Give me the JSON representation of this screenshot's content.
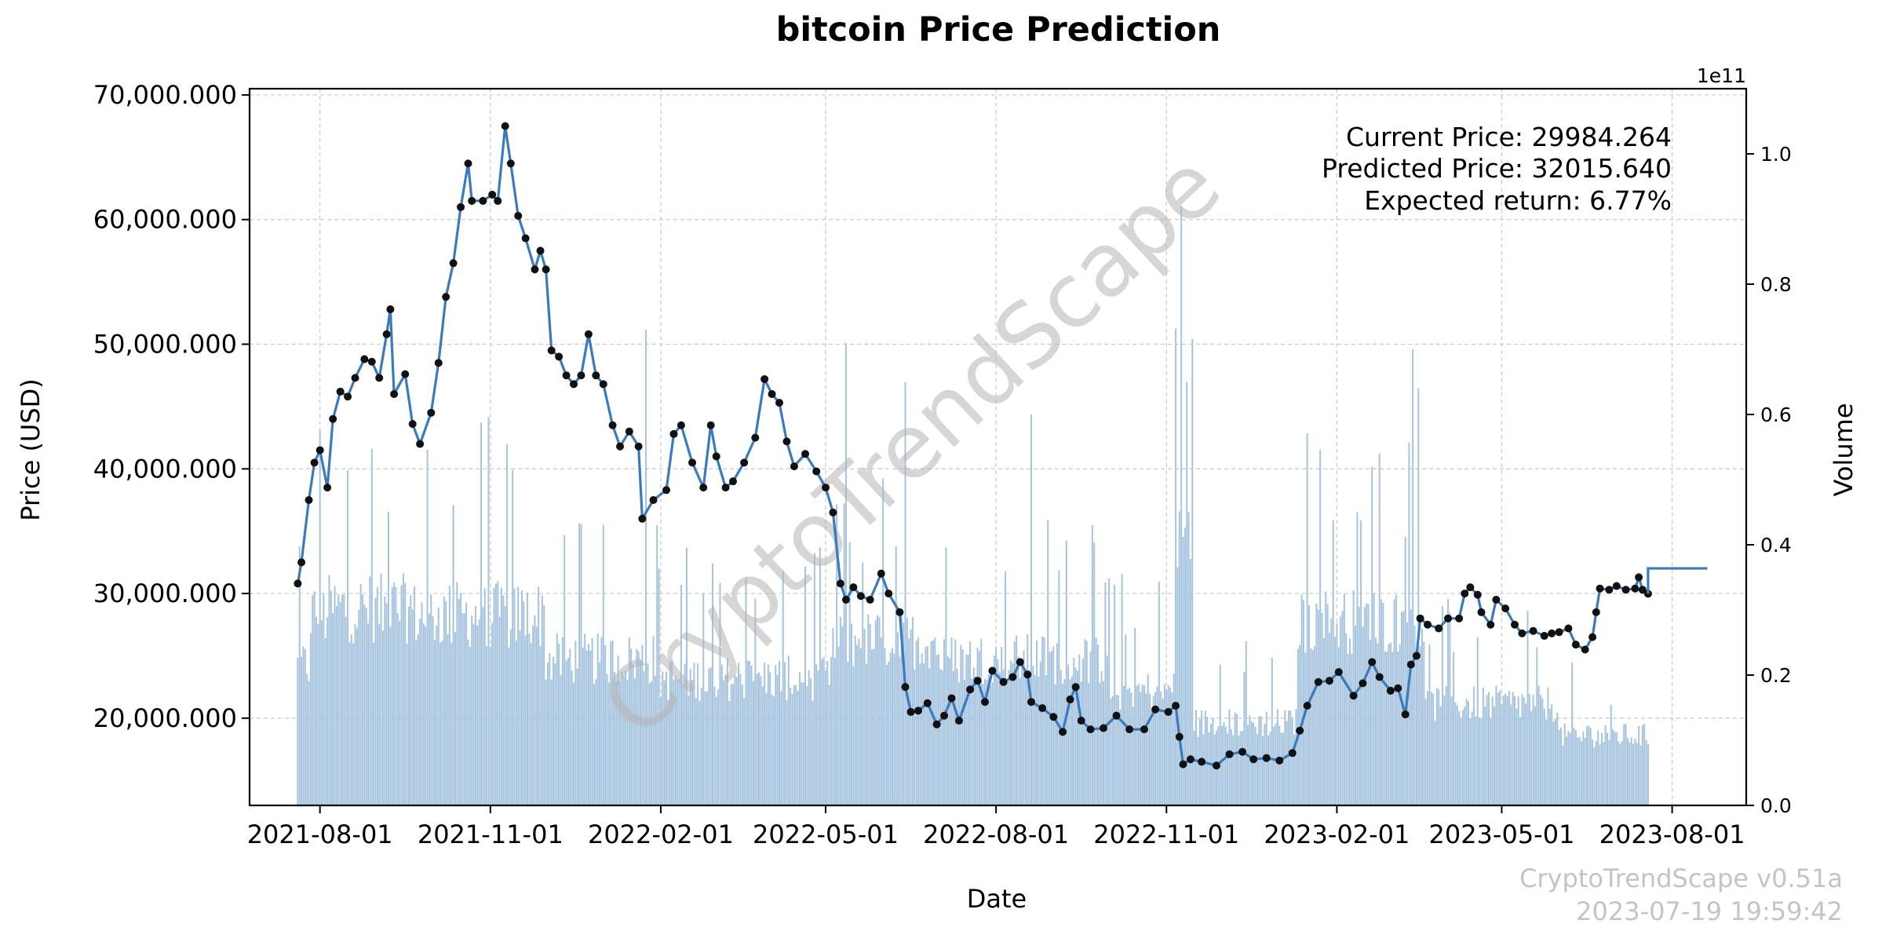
{
  "chart_data": {
    "type": "line",
    "title": "bitcoin Price Prediction",
    "xlabel": "Date",
    "ylabel": "Price (USD)",
    "y2label": "Volume",
    "y2_offset_label": "1e11",
    "x_ticks": [
      "2021-08-01",
      "2021-11-01",
      "2022-02-01",
      "2022-05-01",
      "2022-08-01",
      "2022-11-01",
      "2023-02-01",
      "2023-05-01",
      "2023-08-01"
    ],
    "y_ticks": [
      "20,000.000",
      "30,000.000",
      "40,000.000",
      "50,000.000",
      "60,000.000",
      "70,000.000"
    ],
    "y_tick_values": [
      20000,
      30000,
      40000,
      50000,
      60000,
      70000
    ],
    "y2_ticks": [
      "0.0",
      "0.2",
      "0.4",
      "0.6",
      "0.8",
      "1.0"
    ],
    "y2_tick_values": [
      0,
      0.2,
      0.4,
      0.6,
      0.8,
      1.0
    ],
    "xlim": [
      "2021-06-24",
      "2023-09-10"
    ],
    "ylim": [
      13000,
      70500
    ],
    "y2lim": [
      0,
      1.1
    ],
    "grid": true,
    "colors": {
      "price": "#3a7bbf",
      "marker": "#111111",
      "volume": "#a7c4de",
      "grid": "#c9c9c9",
      "watermark": "#b5b5b5"
    },
    "annotations": {
      "current": "Current Price: 29984.264",
      "predicted": "Predicted Price: 32015.640",
      "expected": "Expected return: 6.77%"
    },
    "watermark": "CryptoTrendScape",
    "footer": {
      "version": "CryptoTrendScape v0.51a",
      "timestamp": "2023-07-19 19:59:42"
    },
    "series": [
      {
        "name": "Price",
        "points": [
          [
            "2021-07-20",
            30800
          ],
          [
            "2021-07-22",
            32500
          ],
          [
            "2021-07-26",
            37500
          ],
          [
            "2021-07-29",
            40500
          ],
          [
            "2021-08-01",
            41500
          ],
          [
            "2021-08-05",
            38500
          ],
          [
            "2021-08-08",
            44000
          ],
          [
            "2021-08-12",
            46200
          ],
          [
            "2021-08-16",
            45800
          ],
          [
            "2021-08-20",
            47300
          ],
          [
            "2021-08-25",
            48800
          ],
          [
            "2021-08-29",
            48600
          ],
          [
            "2021-09-02",
            47300
          ],
          [
            "2021-09-06",
            50800
          ],
          [
            "2021-09-08",
            52800
          ],
          [
            "2021-09-10",
            46000
          ],
          [
            "2021-09-16",
            47600
          ],
          [
            "2021-09-20",
            43600
          ],
          [
            "2021-09-24",
            42000
          ],
          [
            "2021-09-30",
            44500
          ],
          [
            "2021-10-04",
            48500
          ],
          [
            "2021-10-08",
            53800
          ],
          [
            "2021-10-12",
            56500
          ],
          [
            "2021-10-16",
            61000
          ],
          [
            "2021-10-20",
            64500
          ],
          [
            "2021-10-22",
            61500
          ],
          [
            "2021-10-28",
            61500
          ],
          [
            "2021-11-02",
            62000
          ],
          [
            "2021-11-05",
            61500
          ],
          [
            "2021-11-09",
            67500
          ],
          [
            "2021-11-12",
            64500
          ],
          [
            "2021-11-16",
            60300
          ],
          [
            "2021-11-20",
            58500
          ],
          [
            "2021-11-25",
            56000
          ],
          [
            "2021-11-28",
            57500
          ],
          [
            "2021-12-01",
            56000
          ],
          [
            "2021-12-04",
            49500
          ],
          [
            "2021-12-08",
            49000
          ],
          [
            "2021-12-12",
            47500
          ],
          [
            "2021-12-16",
            46800
          ],
          [
            "2021-12-20",
            47500
          ],
          [
            "2021-12-24",
            50800
          ],
          [
            "2021-12-28",
            47500
          ],
          [
            "2022-01-01",
            46800
          ],
          [
            "2022-01-06",
            43500
          ],
          [
            "2022-01-10",
            41800
          ],
          [
            "2022-01-15",
            43000
          ],
          [
            "2022-01-20",
            41800
          ],
          [
            "2022-01-22",
            36000
          ],
          [
            "2022-01-28",
            37500
          ],
          [
            "2022-02-04",
            38300
          ],
          [
            "2022-02-08",
            42800
          ],
          [
            "2022-02-12",
            43500
          ],
          [
            "2022-02-18",
            40500
          ],
          [
            "2022-02-24",
            38500
          ],
          [
            "2022-02-28",
            43500
          ],
          [
            "2022-03-03",
            41000
          ],
          [
            "2022-03-08",
            38500
          ],
          [
            "2022-03-12",
            39000
          ],
          [
            "2022-03-18",
            40500
          ],
          [
            "2022-03-24",
            42500
          ],
          [
            "2022-03-29",
            47200
          ],
          [
            "2022-04-02",
            46000
          ],
          [
            "2022-04-06",
            45300
          ],
          [
            "2022-04-10",
            42200
          ],
          [
            "2022-04-14",
            40200
          ],
          [
            "2022-04-20",
            41200
          ],
          [
            "2022-04-26",
            39800
          ],
          [
            "2022-05-01",
            38500
          ],
          [
            "2022-05-05",
            36500
          ],
          [
            "2022-05-09",
            30800
          ],
          [
            "2022-05-12",
            29500
          ],
          [
            "2022-05-16",
            30500
          ],
          [
            "2022-05-20",
            29800
          ],
          [
            "2022-05-25",
            29500
          ],
          [
            "2022-05-31",
            31600
          ],
          [
            "2022-06-04",
            30000
          ],
          [
            "2022-06-10",
            28500
          ],
          [
            "2022-06-13",
            22500
          ],
          [
            "2022-06-16",
            20500
          ],
          [
            "2022-06-20",
            20600
          ],
          [
            "2022-06-25",
            21200
          ],
          [
            "2022-06-30",
            19500
          ],
          [
            "2022-07-04",
            20200
          ],
          [
            "2022-07-08",
            21600
          ],
          [
            "2022-07-12",
            19800
          ],
          [
            "2022-07-18",
            22300
          ],
          [
            "2022-07-22",
            23000
          ],
          [
            "2022-07-26",
            21300
          ],
          [
            "2022-07-30",
            23800
          ],
          [
            "2022-08-05",
            22900
          ],
          [
            "2022-08-10",
            23300
          ],
          [
            "2022-08-14",
            24500
          ],
          [
            "2022-08-18",
            23500
          ],
          [
            "2022-08-20",
            21300
          ],
          [
            "2022-08-26",
            20800
          ],
          [
            "2022-09-01",
            20100
          ],
          [
            "2022-09-06",
            18900
          ],
          [
            "2022-09-10",
            21500
          ],
          [
            "2022-09-13",
            22500
          ],
          [
            "2022-09-16",
            19800
          ],
          [
            "2022-09-21",
            19100
          ],
          [
            "2022-09-28",
            19200
          ],
          [
            "2022-10-05",
            20200
          ],
          [
            "2022-10-12",
            19100
          ],
          [
            "2022-10-20",
            19100
          ],
          [
            "2022-10-26",
            20700
          ],
          [
            "2022-11-02",
            20500
          ],
          [
            "2022-11-06",
            21000
          ],
          [
            "2022-11-08",
            18500
          ],
          [
            "2022-11-10",
            16300
          ],
          [
            "2022-11-14",
            16700
          ],
          [
            "2022-11-20",
            16500
          ],
          [
            "2022-11-28",
            16200
          ],
          [
            "2022-12-05",
            17100
          ],
          [
            "2022-12-12",
            17300
          ],
          [
            "2022-12-18",
            16700
          ],
          [
            "2022-12-25",
            16800
          ],
          [
            "2023-01-01",
            16600
          ],
          [
            "2023-01-08",
            17200
          ],
          [
            "2023-01-12",
            19000
          ],
          [
            "2023-01-16",
            21000
          ],
          [
            "2023-01-22",
            22900
          ],
          [
            "2023-01-28",
            23000
          ],
          [
            "2023-02-02",
            23700
          ],
          [
            "2023-02-10",
            21800
          ],
          [
            "2023-02-15",
            22800
          ],
          [
            "2023-02-20",
            24500
          ],
          [
            "2023-02-24",
            23300
          ],
          [
            "2023-03-02",
            22200
          ],
          [
            "2023-03-06",
            22400
          ],
          [
            "2023-03-10",
            20300
          ],
          [
            "2023-03-13",
            24300
          ],
          [
            "2023-03-16",
            25000
          ],
          [
            "2023-03-18",
            28000
          ],
          [
            "2023-03-22",
            27500
          ],
          [
            "2023-03-28",
            27200
          ],
          [
            "2023-04-02",
            28000
          ],
          [
            "2023-04-08",
            28000
          ],
          [
            "2023-04-11",
            30000
          ],
          [
            "2023-04-14",
            30500
          ],
          [
            "2023-04-18",
            29900
          ],
          [
            "2023-04-20",
            28500
          ],
          [
            "2023-04-25",
            27500
          ],
          [
            "2023-04-28",
            29500
          ],
          [
            "2023-05-03",
            28800
          ],
          [
            "2023-05-08",
            27500
          ],
          [
            "2023-05-12",
            26800
          ],
          [
            "2023-05-18",
            27000
          ],
          [
            "2023-05-24",
            26600
          ],
          [
            "2023-05-28",
            26800
          ],
          [
            "2023-06-01",
            26900
          ],
          [
            "2023-06-06",
            27200
          ],
          [
            "2023-06-10",
            25900
          ],
          [
            "2023-06-15",
            25500
          ],
          [
            "2023-06-19",
            26500
          ],
          [
            "2023-06-21",
            28500
          ],
          [
            "2023-06-23",
            30400
          ],
          [
            "2023-06-28",
            30300
          ],
          [
            "2023-07-02",
            30600
          ],
          [
            "2023-07-07",
            30300
          ],
          [
            "2023-07-12",
            30400
          ],
          [
            "2023-07-14",
            31300
          ],
          [
            "2023-07-16",
            30300
          ],
          [
            "2023-07-19",
            29984
          ]
        ]
      },
      {
        "name": "Prediction",
        "points": [
          [
            "2023-07-19",
            29984
          ],
          [
            "2023-07-19",
            32015
          ],
          [
            "2023-08-20",
            32015
          ]
        ]
      }
    ],
    "volume": [
      {
        "start": "2021-07-20",
        "end": "2021-07-26",
        "base": 0.22
      },
      {
        "start": "2021-07-27",
        "end": "2021-08-04",
        "base": 0.3
      },
      {
        "start": "2021-08-05",
        "end": "2021-09-20",
        "base": 0.31
      },
      {
        "start": "2021-09-21",
        "end": "2021-11-30",
        "base": 0.3
      },
      {
        "start": "2021-12-01",
        "end": "2022-01-31",
        "base": 0.23
      },
      {
        "start": "2022-02-01",
        "end": "2022-05-04",
        "base": 0.2
      },
      {
        "start": "2022-05-05",
        "end": "2022-06-30",
        "base": 0.26
      },
      {
        "start": "2022-07-01",
        "end": "2022-09-30",
        "base": 0.23
      },
      {
        "start": "2022-10-01",
        "end": "2022-11-05",
        "base": 0.18
      },
      {
        "start": "2022-11-06",
        "end": "2022-11-15",
        "base": 0.42
      },
      {
        "start": "2022-11-16",
        "end": "2023-01-10",
        "base": 0.13
      },
      {
        "start": "2023-01-11",
        "end": "2023-03-20",
        "base": 0.29
      },
      {
        "start": "2023-03-21",
        "end": "2023-05-31",
        "base": 0.16
      },
      {
        "start": "2023-06-01",
        "end": "2023-07-19",
        "base": 0.11
      }
    ],
    "volume_spikes": [
      {
        "date": "2022-01-24",
        "value": 0.73
      },
      {
        "date": "2022-05-12",
        "value": 0.71
      },
      {
        "date": "2022-06-13",
        "value": 0.65
      },
      {
        "date": "2022-08-20",
        "value": 0.6
      },
      {
        "date": "2022-11-09",
        "value": 0.92
      },
      {
        "date": "2022-11-12",
        "value": 0.65
      },
      {
        "date": "2023-02-20",
        "value": 0.52
      },
      {
        "date": "2023-03-14",
        "value": 0.7
      },
      {
        "date": "2023-03-17",
        "value": 0.64
      }
    ]
  }
}
